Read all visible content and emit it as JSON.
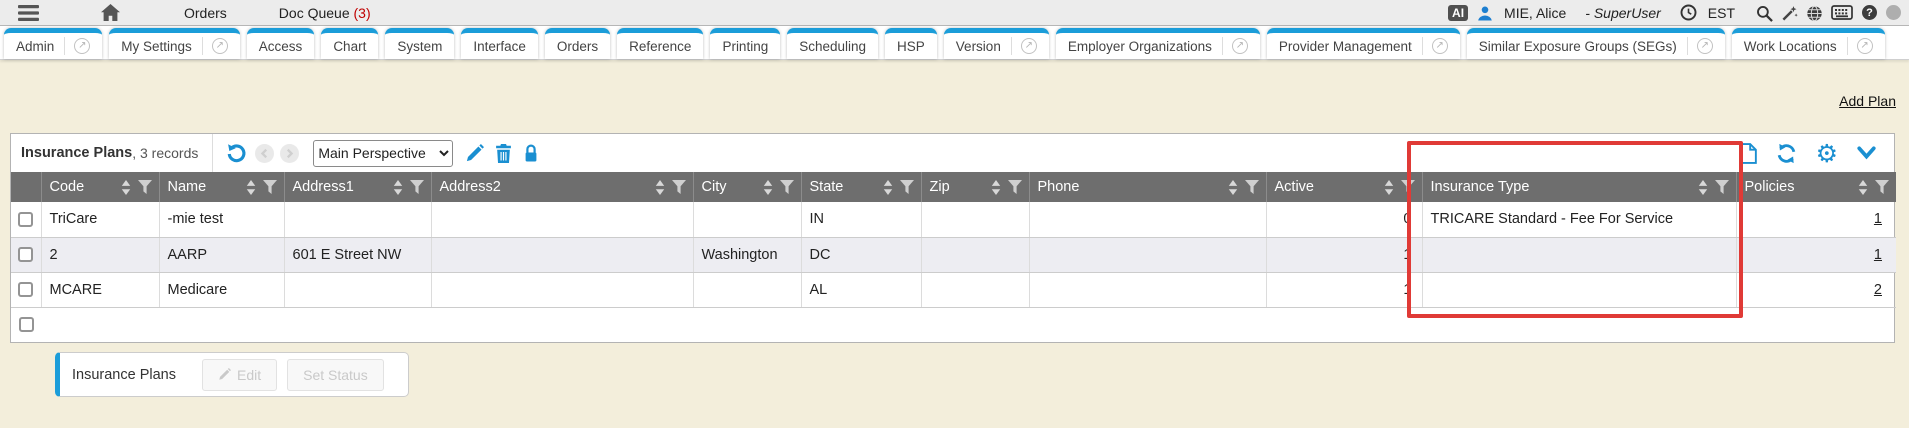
{
  "topbar": {
    "links": {
      "orders": "Orders",
      "doc_queue": "Doc Queue",
      "doc_queue_count": "(3)"
    },
    "ai_badge": "AI",
    "user_name": "MIE, Alice",
    "user_role": "- SuperUser",
    "timezone": "EST"
  },
  "tabs": [
    {
      "label": "Admin",
      "has_popout": true
    },
    {
      "label": "My Settings",
      "has_popout": true
    },
    {
      "label": "Access",
      "has_popout": false
    },
    {
      "label": "Chart",
      "has_popout": false
    },
    {
      "label": "System",
      "has_popout": false
    },
    {
      "label": "Interface",
      "has_popout": false
    },
    {
      "label": "Orders",
      "has_popout": false
    },
    {
      "label": "Reference",
      "has_popout": false
    },
    {
      "label": "Printing",
      "has_popout": false
    },
    {
      "label": "Scheduling",
      "has_popout": false
    },
    {
      "label": "HSP",
      "has_popout": false
    },
    {
      "label": "Version",
      "has_popout": true
    },
    {
      "label": "Employer Organizations",
      "has_popout": true
    },
    {
      "label": "Provider Management",
      "has_popout": true
    },
    {
      "label": "Similar Exposure Groups (SEGs)",
      "has_popout": true
    },
    {
      "label": "Work Locations",
      "has_popout": true
    }
  ],
  "add_plan_label": "Add Plan",
  "grid": {
    "title": "Insurance Plans",
    "records_text": ", 3 records",
    "perspective_selected": "Main Perspective",
    "columns": [
      "Code",
      "Name",
      "Address1",
      "Address2",
      "City",
      "State",
      "Zip",
      "Phone",
      "Active",
      "Insurance Type",
      "Policies"
    ],
    "rows": [
      {
        "code": "TriCare",
        "name": "-mie test",
        "address1": "",
        "address2": "",
        "city": "",
        "state": "IN",
        "zip": "",
        "phone": "",
        "active": "0",
        "insurance_type": "TRICARE Standard - Fee For Service",
        "policies": "1"
      },
      {
        "code": "2",
        "name": "AARP",
        "address1": "601 E Street NW",
        "address2": "",
        "city": "Washington",
        "state": "DC",
        "zip": "",
        "phone": "",
        "active": "1",
        "insurance_type": "",
        "policies": "1"
      },
      {
        "code": "MCARE",
        "name": "Medicare",
        "address1": "",
        "address2": "",
        "city": "",
        "state": "AL",
        "zip": "",
        "phone": "",
        "active": "1",
        "insurance_type": "",
        "policies": "2"
      }
    ]
  },
  "footer_panel": {
    "label": "Insurance Plans",
    "buttons": [
      {
        "label": "Edit",
        "icon": "pencil-icon",
        "disabled": true
      },
      {
        "label": "Set Status",
        "disabled": true
      }
    ]
  },
  "icons": {
    "popout_glyph": "↗",
    "gear_glyph": "⚙",
    "help_glyph": "?"
  },
  "colors": {
    "accent_blue": "#1b9dd9",
    "icon_blue": "#1a8fd1",
    "highlight_red": "#e03a36",
    "cream_bg": "#f3eedb",
    "header_gray": "#6e6e6e",
    "alt_row": "#ededf2",
    "count_red": "#c00000"
  }
}
